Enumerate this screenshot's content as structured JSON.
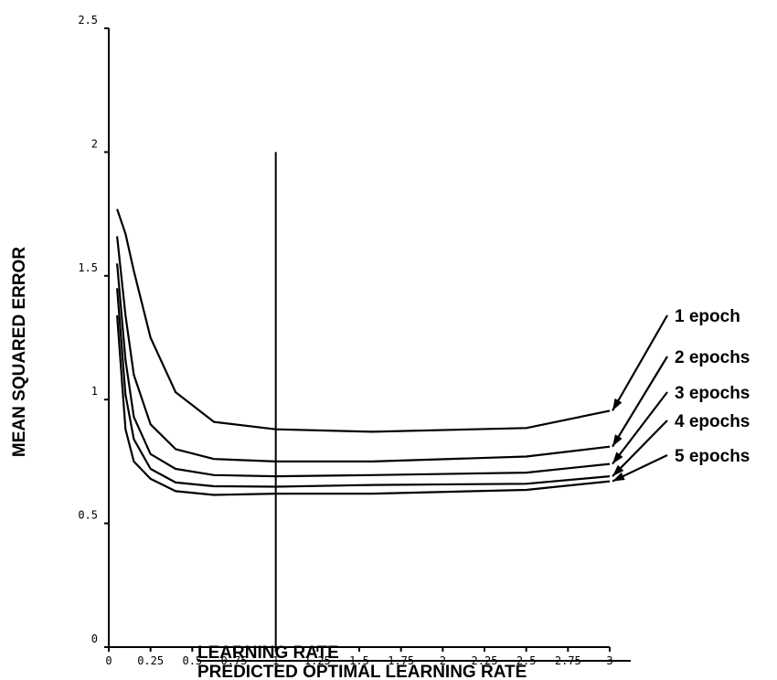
{
  "chart_data": {
    "type": "line",
    "xlabel_numerator": "LEARNING RATE",
    "xlabel_denominator": "PREDICTED OPTIMAL LEARNING RATE",
    "ylabel": "MEAN SQUARED ERROR",
    "xlim": [
      0,
      3
    ],
    "ylim": [
      0,
      2.5
    ],
    "x_ticks": [
      "0",
      "0.25",
      "0.5",
      "0.75",
      "1",
      "1.25",
      "1.5",
      "1.75",
      "2",
      "2.25",
      "2.5",
      "2.75",
      "3"
    ],
    "y_ticks": [
      "0",
      "0.5",
      "1",
      "1.5",
      "2",
      "2.5"
    ],
    "reference_line": {
      "x": 1,
      "y_from": 0,
      "y_to": 2
    },
    "x": [
      0.05,
      0.1,
      0.15,
      0.25,
      0.4,
      0.63,
      1.0,
      1.58,
      2.5,
      3.0
    ],
    "series": [
      {
        "name": "1 epoch",
        "values": [
          1.77,
          1.67,
          1.52,
          1.25,
          1.03,
          0.91,
          0.88,
          0.87,
          0.885,
          0.955
        ]
      },
      {
        "name": "2 epochs",
        "values": [
          1.66,
          1.34,
          1.1,
          0.9,
          0.8,
          0.76,
          0.75,
          0.75,
          0.77,
          0.81
        ]
      },
      {
        "name": "3 epochs",
        "values": [
          1.55,
          1.16,
          0.93,
          0.78,
          0.72,
          0.695,
          0.69,
          0.695,
          0.705,
          0.74
        ]
      },
      {
        "name": "4 epochs",
        "values": [
          1.45,
          1.02,
          0.84,
          0.72,
          0.665,
          0.65,
          0.648,
          0.655,
          0.66,
          0.69
        ]
      },
      {
        "name": "5 epochs",
        "values": [
          1.34,
          0.88,
          0.75,
          0.68,
          0.63,
          0.615,
          0.62,
          0.62,
          0.635,
          0.67
        ]
      }
    ]
  }
}
